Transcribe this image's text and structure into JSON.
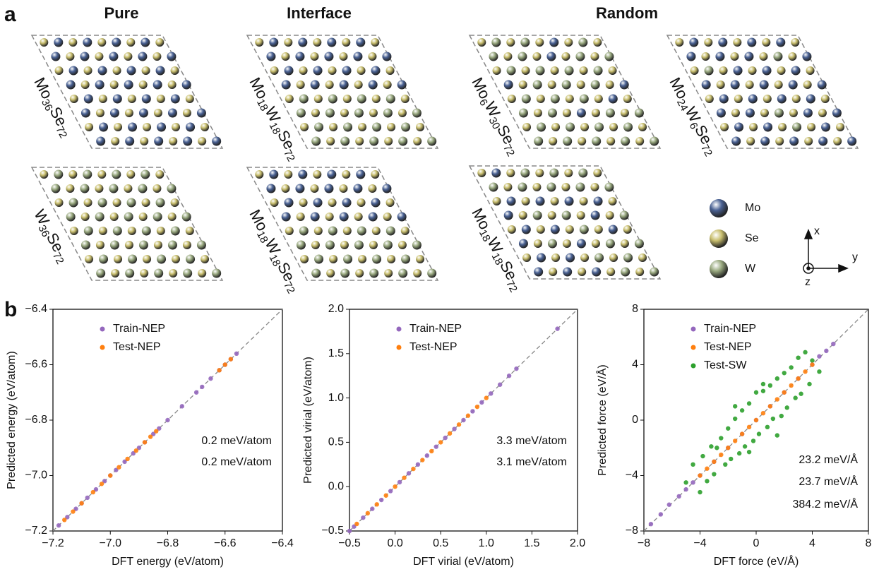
{
  "panel_labels": [
    "a",
    "b"
  ],
  "column_headers": [
    "Pure",
    "Interface",
    "Random"
  ],
  "structures": [
    {
      "formula": [
        "Mo",
        "36",
        "Se",
        "72"
      ],
      "kind": "pure"
    },
    {
      "formula": [
        "Mo",
        "18",
        "W",
        "18",
        "Se",
        "72"
      ],
      "kind": "interface"
    },
    {
      "formula": [
        "Mo",
        "6",
        "W",
        "30",
        "Se",
        "72"
      ],
      "kind": "random"
    },
    {
      "formula": [
        "Mo",
        "24",
        "W",
        "6",
        "Se",
        "72"
      ],
      "kind": "random"
    },
    {
      "formula": [
        "W",
        "36",
        "Se",
        "72"
      ],
      "kind": "pure"
    },
    {
      "formula": [
        "Mo",
        "18",
        "W",
        "18",
        "Se",
        "72"
      ],
      "kind": "interface"
    },
    {
      "formula": [
        "Mo",
        "18",
        "W",
        "18",
        "Se",
        "72"
      ],
      "kind": "random"
    }
  ],
  "atom_legend": [
    {
      "name": "Mo",
      "color": "#4a6294"
    },
    {
      "name": "Se",
      "color": "#c9bf6e"
    },
    {
      "name": "W",
      "color": "#9aaa80"
    }
  ],
  "axes_indicator": [
    "x",
    "y",
    "z"
  ],
  "chart_data": [
    {
      "type": "scatter",
      "xlabel": "DFT energy (eV/atom)",
      "ylabel": "Predicted energy (eV/atom)",
      "xlim": [
        -7.2,
        -6.4
      ],
      "ylim": [
        -7.2,
        -6.4
      ],
      "xticks": [
        {
          "value": -7.2,
          "label": "−7.2"
        },
        {
          "value": -7.0,
          "label": "−7.0"
        },
        {
          "value": -6.8,
          "label": "−6.8"
        },
        {
          "value": -6.6,
          "label": "−6.6"
        },
        {
          "value": -6.4,
          "label": "−6.4"
        }
      ],
      "yticks": [
        {
          "value": -7.2,
          "label": "−7.2"
        },
        {
          "value": -7.0,
          "label": "−7.0"
        },
        {
          "value": -6.8,
          "label": "−6.8"
        },
        {
          "value": -6.6,
          "label": "−6.6"
        },
        {
          "value": -6.4,
          "label": "−6.4"
        }
      ],
      "series": [
        {
          "name": "Train-NEP",
          "color": "#9467bd",
          "x": [
            -7.18,
            -7.15,
            -7.12,
            -7.1,
            -7.08,
            -7.05,
            -7.02,
            -7.0,
            -6.98,
            -6.95,
            -6.92,
            -6.9,
            -6.88,
            -6.85,
            -6.83,
            -6.8,
            -6.75,
            -6.7,
            -6.68,
            -6.65,
            -6.62,
            -6.6,
            -6.58,
            -6.56
          ],
          "values": [
            -7.18,
            -7.15,
            -7.12,
            -7.1,
            -7.08,
            -7.05,
            -7.02,
            -7.0,
            -6.98,
            -6.95,
            -6.92,
            -6.9,
            -6.88,
            -6.85,
            -6.83,
            -6.8,
            -6.75,
            -6.7,
            -6.68,
            -6.65,
            -6.62,
            -6.6,
            -6.58,
            -6.56
          ]
        },
        {
          "name": "Test-NEP",
          "color": "#ff7f0e",
          "x": [
            -7.16,
            -7.13,
            -7.1,
            -7.06,
            -7.03,
            -7.0,
            -6.97,
            -6.94,
            -6.91,
            -6.88,
            -6.86,
            -6.84,
            -6.62,
            -6.6,
            -6.58
          ],
          "values": [
            -7.16,
            -7.13,
            -7.1,
            -7.06,
            -7.03,
            -7.0,
            -6.97,
            -6.94,
            -6.91,
            -6.88,
            -6.86,
            -6.84,
            -6.62,
            -6.6,
            -6.58
          ]
        }
      ],
      "annotations": [
        {
          "text": "0.2 meV/atom",
          "color": "#9467bd"
        },
        {
          "text": "0.2 meV/atom",
          "color": "#ff7f0e"
        }
      ]
    },
    {
      "type": "scatter",
      "xlabel": "DFT virial (eV/atom)",
      "ylabel": "Predicted virial (eV/atom)",
      "xlim": [
        -0.5,
        2.0
      ],
      "ylim": [
        -0.5,
        2.0
      ],
      "xticks": [
        {
          "value": -0.5,
          "label": "−0.5"
        },
        {
          "value": 0,
          "label": "0.0"
        },
        0.5,
        {
          "value": 1,
          "label": "1.0"
        },
        1.5,
        {
          "value": 2,
          "label": "2.0"
        }
      ],
      "yticks": [
        {
          "value": -0.5,
          "label": "−0.5"
        },
        {
          "value": 0,
          "label": "0.0"
        },
        0.5,
        {
          "value": 1,
          "label": "1.0"
        },
        1.5,
        {
          "value": 2,
          "label": "2.0"
        }
      ],
      "series": [
        {
          "name": "Train-NEP",
          "color": "#9467bd",
          "x": [
            -0.5,
            -0.45,
            -0.35,
            -0.25,
            -0.15,
            -0.05,
            0.05,
            0.15,
            0.25,
            0.35,
            0.45,
            0.55,
            0.65,
            0.75,
            0.85,
            0.95,
            1.05,
            1.15,
            1.25,
            1.33,
            1.78
          ],
          "values": [
            -0.5,
            -0.45,
            -0.35,
            -0.25,
            -0.15,
            -0.05,
            0.05,
            0.15,
            0.25,
            0.35,
            0.45,
            0.55,
            0.65,
            0.75,
            0.85,
            0.95,
            1.05,
            1.15,
            1.25,
            1.33,
            1.78
          ]
        },
        {
          "name": "Test-NEP",
          "color": "#ff7f0e",
          "x": [
            -0.42,
            -0.3,
            -0.2,
            -0.1,
            0.0,
            0.1,
            0.2,
            0.3,
            0.4,
            0.5,
            0.6,
            0.7,
            0.8,
            0.9,
            1.0
          ],
          "values": [
            -0.42,
            -0.3,
            -0.2,
            -0.1,
            0.0,
            0.1,
            0.2,
            0.3,
            0.4,
            0.5,
            0.6,
            0.7,
            0.8,
            0.9,
            1.0
          ]
        }
      ],
      "annotations": [
        {
          "text": "3.3 meV/atom",
          "color": "#9467bd"
        },
        {
          "text": "3.1 meV/atom",
          "color": "#ff7f0e"
        }
      ]
    },
    {
      "type": "scatter",
      "xlabel": "DFT force (eV/Å)",
      "ylabel": "Predicted force (eV/Å)",
      "xlim": [
        -8,
        8
      ],
      "ylim": [
        -8,
        8
      ],
      "xticks": [
        {
          "value": -8,
          "label": "−8"
        },
        {
          "value": -4,
          "label": "−4"
        },
        0,
        4,
        8
      ],
      "yticks": [
        {
          "value": -8,
          "label": "−8"
        },
        {
          "value": -4,
          "label": "−4"
        },
        0,
        4,
        8
      ],
      "series": [
        {
          "name": "Train-NEP",
          "color": "#9467bd",
          "x": [
            -7.5,
            -6.8,
            -6.2,
            -5.5,
            -5.0,
            -4.5,
            -4.0,
            -3.0,
            -2.0,
            -1.0,
            0.0,
            1.0,
            2.0,
            3.0,
            4.0,
            4.5,
            5.0,
            5.5
          ],
          "values": [
            -7.5,
            -6.8,
            -6.1,
            -5.5,
            -5.0,
            -4.5,
            -4.0,
            -3.0,
            -2.0,
            -1.0,
            0.0,
            1.0,
            2.0,
            3.0,
            4.0,
            4.6,
            5.0,
            5.5
          ]
        },
        {
          "name": "Test-NEP",
          "color": "#ff7f0e",
          "x": [
            -4.0,
            -3.5,
            -3.0,
            -2.5,
            -2.0,
            -1.5,
            -1.0,
            -0.5,
            0.0,
            0.5,
            1.0,
            1.5,
            2.0,
            2.5,
            3.0,
            3.5,
            4.0
          ],
          "values": [
            -4.0,
            -3.5,
            -3.0,
            -2.5,
            -2.0,
            -1.5,
            -1.0,
            -0.5,
            0.0,
            0.5,
            1.0,
            1.5,
            2.0,
            2.5,
            3.0,
            3.5,
            4.0
          ]
        },
        {
          "name": "Test-SW",
          "color": "#2ca02c",
          "x": [
            -5.0,
            -4.5,
            -4.0,
            -3.8,
            -3.5,
            -3.2,
            -3.0,
            -2.8,
            -2.5,
            -2.2,
            -2.0,
            -1.8,
            -1.5,
            -1.2,
            -1.0,
            -0.8,
            -0.5,
            -0.2,
            0.0,
            0.2,
            0.5,
            0.8,
            1.0,
            1.2,
            1.5,
            1.8,
            2.0,
            2.2,
            2.5,
            2.8,
            3.0,
            3.2,
            3.5,
            3.8,
            4.0,
            4.5,
            -1.5,
            1.5,
            -0.5,
            0.5
          ],
          "values": [
            -4.5,
            -3.2,
            -5.2,
            -2.6,
            -4.4,
            -1.9,
            -3.9,
            -2.0,
            -1.3,
            -3.2,
            -0.6,
            -2.8,
            0.1,
            -2.4,
            0.7,
            -1.9,
            1.2,
            -1.5,
            2.0,
            -1.0,
            2.1,
            -0.5,
            2.5,
            0.1,
            3.0,
            0.3,
            3.4,
            0.9,
            3.8,
            1.6,
            4.5,
            1.9,
            4.9,
            2.6,
            4.3,
            3.5,
            1.0,
            -1.1,
            -2.3,
            2.6
          ]
        }
      ],
      "annotations": [
        {
          "text": "23.2 meV/Å",
          "color": "#9467bd"
        },
        {
          "text": "23.7 meV/Å",
          "color": "#ff7f0e"
        },
        {
          "text": "384.2 meV/Å",
          "color": "#2ca02c"
        }
      ]
    }
  ]
}
